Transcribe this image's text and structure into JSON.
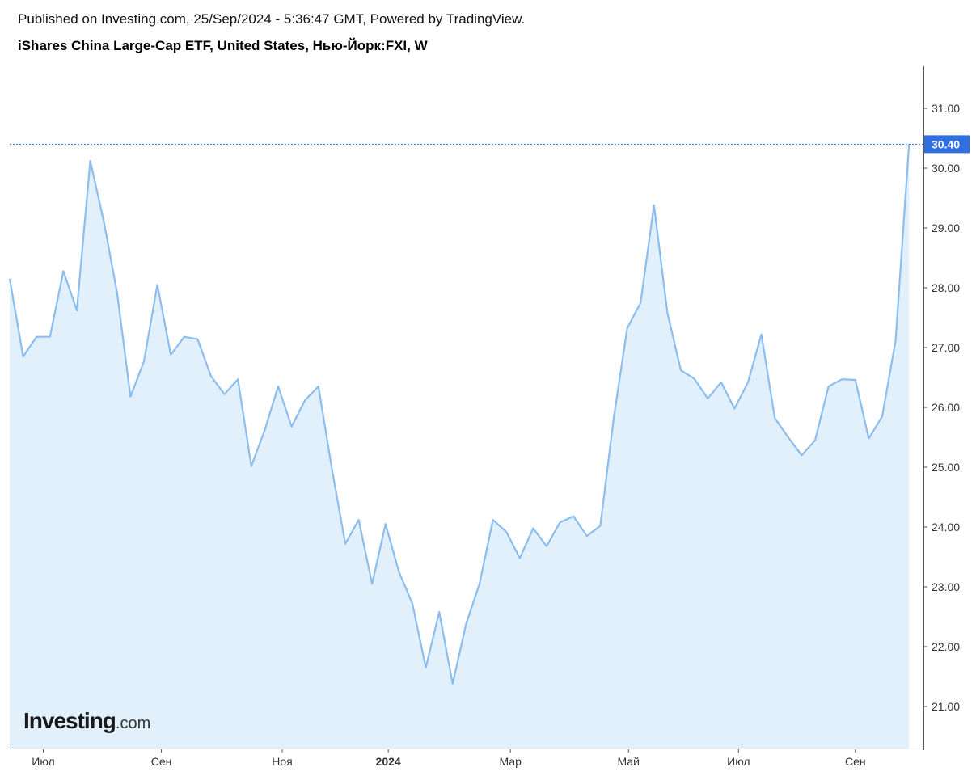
{
  "header": {
    "published": "Published on Investing.com, 25/Sep/2024 - 5:36:47 GMT, Powered by TradingView.",
    "title": "iShares China Large-Cap ETF, United States, Нью-Йорк:FXI, W"
  },
  "logo": {
    "brand": "Investing",
    "suffix": ".com"
  },
  "colors": {
    "line": "#8cbdee",
    "area": "#e1f0fa",
    "last_price_bg": "#2f6fe0",
    "dotted": "#2f6fe0",
    "axis": "#555555"
  },
  "chart_data": {
    "type": "area",
    "title": "iShares China Large-Cap ETF, United States, Нью-Йорк:FXI, W",
    "xlabel": "",
    "ylabel": "",
    "ylim": [
      20.3,
      31.6
    ],
    "y_ticks": [
      "21.00",
      "22.00",
      "23.00",
      "24.00",
      "25.00",
      "26.00",
      "27.00",
      "28.00",
      "29.00",
      "30.00",
      "31.00"
    ],
    "x_ticks": [
      {
        "label": "Июл",
        "week": 2.5,
        "bold": false
      },
      {
        "label": "Сен",
        "week": 11.3,
        "bold": false
      },
      {
        "label": "Ноя",
        "week": 20.3,
        "bold": false
      },
      {
        "label": "2024",
        "week": 28.2,
        "bold": true
      },
      {
        "label": "Мар",
        "week": 37.3,
        "bold": false
      },
      {
        "label": "Май",
        "week": 46.1,
        "bold": false
      },
      {
        "label": "Июл",
        "week": 54.3,
        "bold": false
      },
      {
        "label": "Сен",
        "week": 63.0,
        "bold": false
      }
    ],
    "last_price": "30.40",
    "last_value": 30.4,
    "values": [
      28.15,
      26.85,
      27.18,
      27.18,
      28.28,
      27.62,
      30.12,
      29.12,
      27.92,
      26.18,
      26.77,
      28.05,
      26.88,
      27.18,
      27.14,
      26.52,
      26.22,
      26.47,
      25.02,
      25.62,
      26.35,
      25.68,
      26.12,
      26.35,
      24.98,
      23.72,
      24.12,
      23.05,
      24.05,
      23.25,
      22.72,
      21.65,
      22.58,
      21.38,
      22.38,
      23.05,
      24.12,
      23.92,
      23.48,
      23.98,
      23.68,
      24.08,
      24.18,
      23.85,
      24.02,
      25.82,
      27.32,
      27.75,
      29.38,
      27.58,
      26.62,
      26.48,
      26.15,
      26.42,
      25.98,
      26.42,
      27.22,
      25.82,
      25.5,
      25.2,
      25.45,
      26.35,
      26.47,
      26.46,
      25.48,
      25.85,
      27.12,
      30.4
    ]
  }
}
